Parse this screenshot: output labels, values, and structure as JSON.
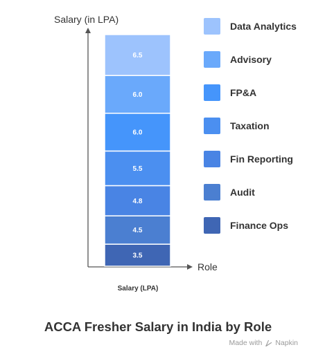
{
  "chart_data": {
    "type": "bar",
    "stacked": true,
    "title": "ACCA Fresher Salary in India by Role",
    "ylabel": "Salary (in LPA)",
    "xlabel": "Role",
    "categories": [
      "Salary (LPA)"
    ],
    "series": [
      {
        "name": "Finance Ops",
        "values": [
          3.5
        ],
        "color": "#3f66b4"
      },
      {
        "name": "Audit",
        "values": [
          4.5
        ],
        "color": "#4b7fd1"
      },
      {
        "name": "Fin Reporting",
        "values": [
          4.8
        ],
        "color": "#4984e4"
      },
      {
        "name": "Taxation",
        "values": [
          5.5
        ],
        "color": "#4b8ff0"
      },
      {
        "name": "FP&A",
        "values": [
          6.0
        ],
        "color": "#4595fb"
      },
      {
        "name": "Advisory",
        "values": [
          6.0
        ],
        "color": "#6aa9fb"
      },
      {
        "name": "Data Analytics",
        "values": [
          6.5
        ],
        "color": "#9dc3fd"
      }
    ],
    "grid": false,
    "legend": "right"
  },
  "watermark": {
    "text": "Made with",
    "brand": "Napkin"
  }
}
